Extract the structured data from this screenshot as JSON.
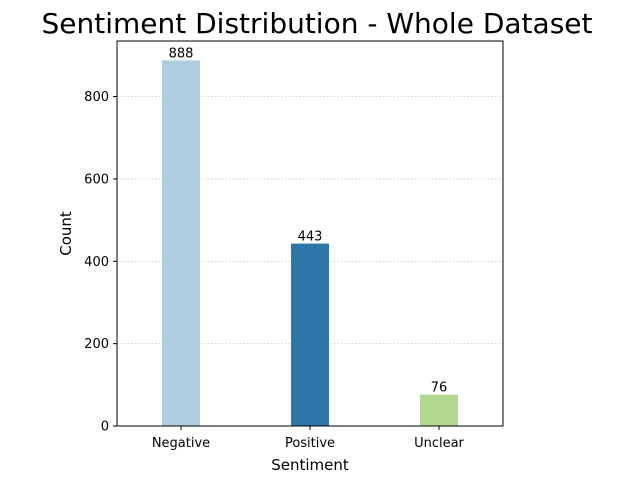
{
  "chart_data": {
    "type": "bar",
    "title": "Sentiment Distribution - Whole Dataset",
    "xlabel": "Sentiment",
    "ylabel": "Count",
    "categories": [
      "Negative",
      "Positive",
      "Unclear"
    ],
    "values": [
      888,
      443,
      76
    ],
    "data_labels": [
      "888",
      "443",
      "76"
    ],
    "colors": [
      "#aecde0",
      "#2e76a8",
      "#b3d891"
    ],
    "ylim": [
      0,
      935
    ],
    "yticks": [
      0,
      200,
      400,
      600,
      800
    ],
    "grid": "y-dotted",
    "legend": "none"
  }
}
